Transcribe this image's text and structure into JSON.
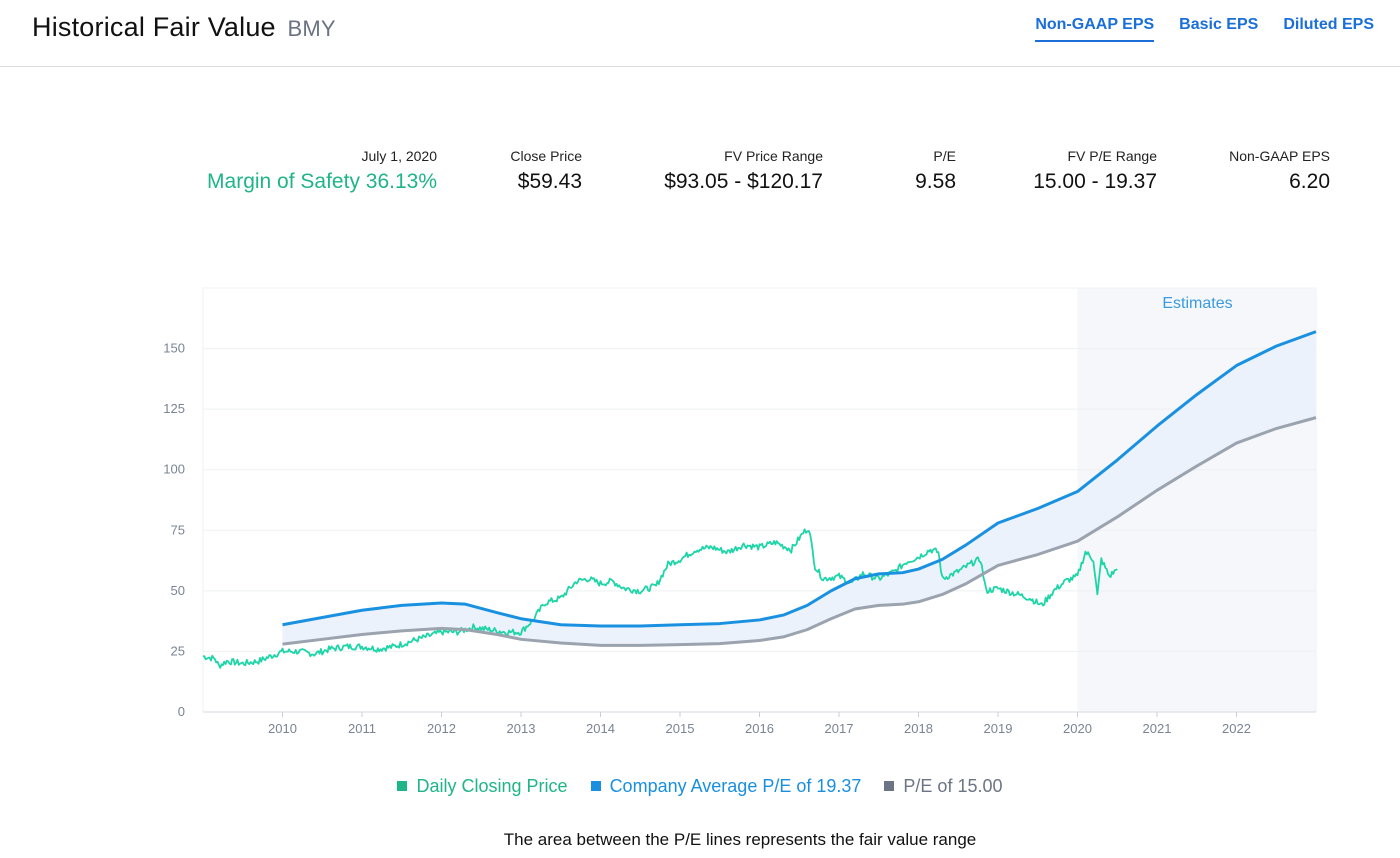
{
  "header": {
    "title": "Historical Fair Value",
    "ticker": "BMY",
    "tabs": [
      {
        "label": "Non-GAAP EPS",
        "active": true
      },
      {
        "label": "Basic EPS",
        "active": false
      },
      {
        "label": "Diluted EPS",
        "active": false
      }
    ]
  },
  "stats": {
    "date": {
      "label": "July 1, 2020",
      "value": "Margin of Safety 36.13%"
    },
    "close_price": {
      "label": "Close Price",
      "value": "$59.43"
    },
    "fv_price_range": {
      "label": "FV Price Range",
      "value": "$93.05 - $120.17"
    },
    "pe": {
      "label": "P/E",
      "value": "9.58"
    },
    "fv_pe_range": {
      "label": "FV P/E Range",
      "value": "15.00 - 19.37"
    },
    "eps": {
      "label": "Non-GAAP EPS",
      "value": "6.20"
    }
  },
  "colors": {
    "price": "#1ed5a8",
    "avg_pe": "#1a91e0",
    "pe15": "#9aa3ae",
    "band_fill": "#eaf1fc",
    "estimates_bg": "#f5f7fa",
    "legend_green": "#1fb589",
    "legend_blue": "#1a8fe0",
    "legend_gray": "#6c7584"
  },
  "chart_data": {
    "type": "line",
    "title": "",
    "xlabel": "",
    "ylabel": "",
    "xlim": [
      2009.0,
      2023.0
    ],
    "ylim": [
      0,
      175
    ],
    "x_ticks": [
      "2010",
      "2011",
      "2012",
      "2013",
      "2014",
      "2015",
      "2016",
      "2017",
      "2018",
      "2019",
      "2020",
      "2021",
      "2022"
    ],
    "y_ticks": [
      "0",
      "25",
      "50",
      "75",
      "100",
      "125",
      "150"
    ],
    "annotations": [
      {
        "text": "Estimates",
        "region_start": 2020.0,
        "region_end": 2023.0
      }
    ],
    "series": [
      {
        "name": "Daily Closing Price",
        "x": [
          2009.0,
          2009.15,
          2009.2,
          2009.3,
          2009.5,
          2009.7,
          2009.85,
          2010.0,
          2010.2,
          2010.4,
          2010.6,
          2010.8,
          2011.0,
          2011.2,
          2011.4,
          2011.6,
          2011.8,
          2012.0,
          2012.2,
          2012.4,
          2012.6,
          2012.8,
          2013.0,
          2013.15,
          2013.3,
          2013.5,
          2013.7,
          2013.85,
          2014.0,
          2014.15,
          2014.3,
          2014.5,
          2014.7,
          2014.85,
          2015.0,
          2015.2,
          2015.4,
          2015.6,
          2015.8,
          2016.0,
          2016.2,
          2016.4,
          2016.55,
          2016.62,
          2016.7,
          2016.8,
          2017.0,
          2017.15,
          2017.3,
          2017.5,
          2017.7,
          2017.85,
          2018.0,
          2018.15,
          2018.25,
          2018.3,
          2018.5,
          2018.7,
          2018.78,
          2018.85,
          2019.0,
          2019.2,
          2019.4,
          2019.55,
          2019.7,
          2019.85,
          2020.0,
          2020.1,
          2020.2,
          2020.25,
          2020.3,
          2020.4,
          2020.5
        ],
        "values": [
          23,
          22,
          19,
          21,
          20,
          21,
          23,
          25,
          25,
          24,
          26,
          27,
          27,
          26,
          27,
          29,
          31,
          33,
          33,
          35,
          34,
          33,
          33,
          38,
          45,
          47,
          54,
          55,
          53,
          54,
          51,
          50,
          52,
          61,
          63,
          67,
          68,
          66,
          69,
          68,
          70,
          67,
          74,
          76,
          60,
          55,
          56,
          53,
          57,
          55,
          58,
          62,
          64,
          67,
          66,
          55,
          58,
          62,
          63,
          50,
          51,
          49,
          47,
          44,
          50,
          54,
          56,
          66,
          63,
          48,
          63,
          56,
          59
        ]
      },
      {
        "name": "Company Average P/E of 19.37",
        "x": [
          2010.0,
          2010.5,
          2011.0,
          2011.5,
          2012.0,
          2012.3,
          2012.7,
          2013.0,
          2013.5,
          2014.0,
          2014.5,
          2015.0,
          2015.5,
          2016.0,
          2016.3,
          2016.6,
          2016.9,
          2017.2,
          2017.5,
          2017.8,
          2018.0,
          2018.3,
          2018.6,
          2019.0,
          2019.5,
          2020.0,
          2020.5,
          2021.0,
          2021.5,
          2022.0,
          2022.5,
          2023.0
        ],
        "values": [
          36,
          39,
          42,
          44,
          45,
          44.5,
          41,
          38.5,
          36,
          35.5,
          35.5,
          36,
          36.5,
          38,
          40,
          44,
          50,
          55,
          57,
          57.5,
          59,
          63,
          69,
          78,
          84,
          91,
          104,
          118,
          131,
          143,
          151,
          157
        ]
      },
      {
        "name": "P/E of 15.00",
        "x": [
          2010.0,
          2010.5,
          2011.0,
          2011.5,
          2012.0,
          2012.3,
          2012.7,
          2013.0,
          2013.5,
          2014.0,
          2014.5,
          2015.0,
          2015.5,
          2016.0,
          2016.3,
          2016.6,
          2016.9,
          2017.2,
          2017.5,
          2017.8,
          2018.0,
          2018.3,
          2018.6,
          2019.0,
          2019.5,
          2020.0,
          2020.5,
          2021.0,
          2021.5,
          2022.0,
          2022.5,
          2023.0
        ],
        "values": [
          28,
          30,
          32,
          33.5,
          34.5,
          34,
          32,
          30,
          28.5,
          27.5,
          27.5,
          27.8,
          28.2,
          29.5,
          31,
          34,
          38.5,
          42.5,
          44,
          44.5,
          45.5,
          48.5,
          53,
          60.5,
          65,
          70.5,
          80.5,
          91.5,
          101.5,
          111,
          117,
          121.5
        ]
      }
    ]
  },
  "legend": {
    "items": [
      {
        "label": "Daily Closing Price"
      },
      {
        "label": "Company Average P/E of 19.37"
      },
      {
        "label": "P/E of 15.00"
      }
    ]
  },
  "note": "The area between the P/E lines represents the fair value range"
}
